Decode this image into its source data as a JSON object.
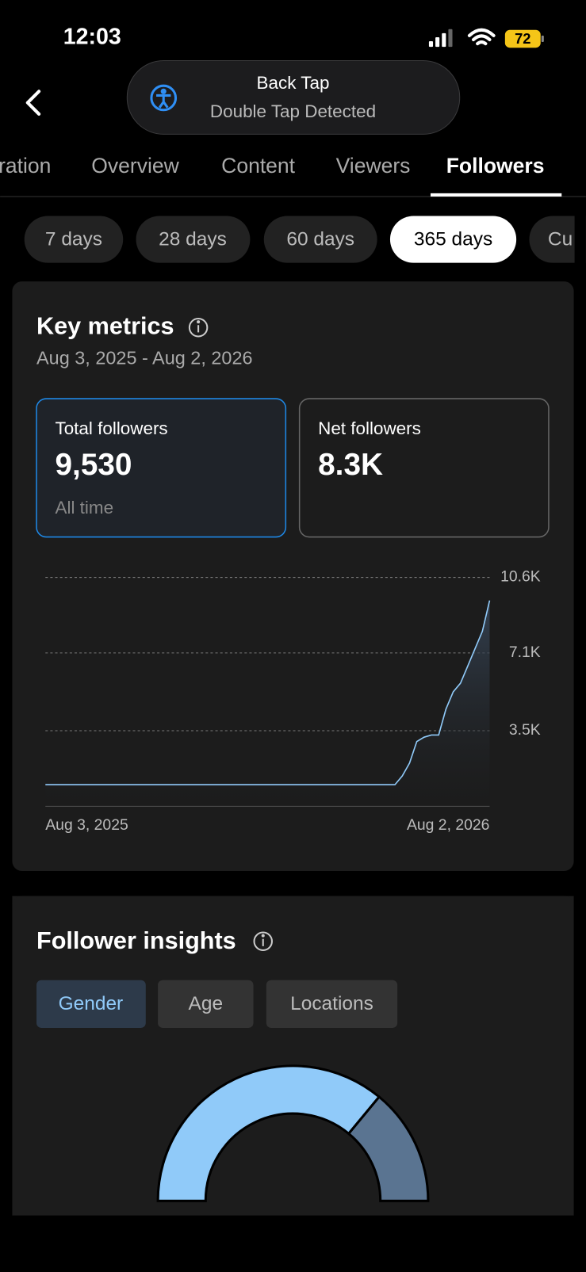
{
  "status_bar": {
    "time": "12:03",
    "battery": "72"
  },
  "banner": {
    "title": "Back Tap",
    "subtitle": "Double Tap Detected"
  },
  "tabs": [
    "ration",
    "Overview",
    "Content",
    "Viewers",
    "Followers"
  ],
  "ranges": [
    "7 days",
    "28 days",
    "60 days",
    "365 days",
    "Cu"
  ],
  "key_metrics": {
    "title": "Key metrics",
    "date_range": "Aug 3, 2025 - Aug 2, 2026",
    "cards": [
      {
        "label": "Total followers",
        "value": "9,530",
        "note": "All time"
      },
      {
        "label": "Net followers",
        "value": "8.3K"
      }
    ]
  },
  "follower_insights": {
    "title": "Follower insights",
    "buttons": [
      "Gender",
      "Age",
      "Locations"
    ]
  },
  "chart_data": [
    {
      "type": "line",
      "color": "#90caf9",
      "grid": true,
      "categories": [
        "Aug 3, 2025",
        null,
        null,
        null,
        null,
        null,
        null,
        null,
        null,
        null,
        null,
        null,
        null,
        null,
        null,
        null,
        null,
        null,
        null,
        null,
        null,
        null,
        null,
        null,
        null,
        null,
        null,
        null,
        null,
        null,
        null,
        null,
        null,
        null,
        null,
        null,
        null,
        null,
        null,
        null,
        null,
        null,
        null,
        null,
        null,
        null,
        null,
        null,
        null,
        null,
        null,
        null,
        null,
        null,
        null,
        null,
        null,
        null,
        null,
        null,
        null,
        "Aug 2, 2026"
      ],
      "values": [
        1000,
        1000,
        1000,
        1000,
        1000,
        1000,
        1000,
        1000,
        1000,
        1000,
        1000,
        1000,
        1000,
        1000,
        1000,
        1000,
        1000,
        1000,
        1000,
        1000,
        1000,
        1000,
        1000,
        1000,
        1000,
        1000,
        1000,
        1000,
        1000,
        1000,
        1000,
        1000,
        1000,
        1000,
        1000,
        1000,
        1000,
        1000,
        1000,
        1000,
        1000,
        1000,
        1000,
        1000,
        1000,
        1000,
        1000,
        1000,
        1000,
        1400,
        2000,
        3000,
        3200,
        3300,
        3300,
        4500,
        5300,
        5700,
        6500,
        7300,
        8100,
        9530
      ],
      "ylim": [
        0,
        10600
      ],
      "yticks": [
        {
          "value": 3500,
          "label": "3.5K"
        },
        {
          "value": 7100,
          "label": "7.1K"
        },
        {
          "value": 10600,
          "label": "10.6K"
        }
      ]
    },
    {
      "type": "pie",
      "values": [
        72,
        28
      ],
      "colors": [
        "#90caf9",
        "#5a7491"
      ]
    }
  ]
}
